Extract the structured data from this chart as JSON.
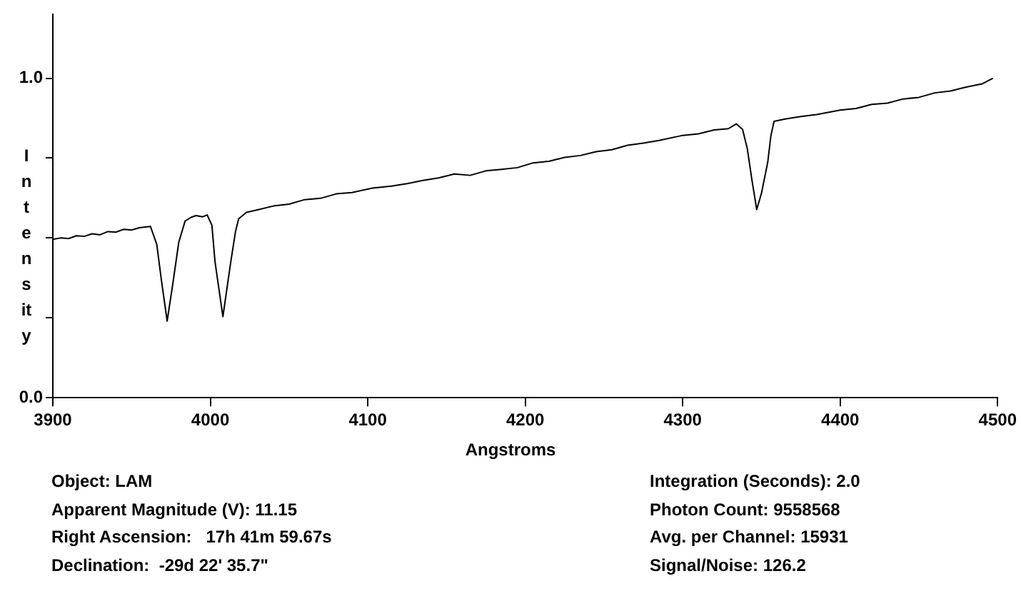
{
  "chart_data": {
    "type": "line",
    "xlabel": "Angstroms",
    "ylabel": "Intensity",
    "x": [
      3900,
      3905,
      3910,
      3915,
      3920,
      3925,
      3930,
      3935,
      3940,
      3945,
      3950,
      3955,
      3962,
      3966,
      3969,
      3972.6,
      3976,
      3980,
      3984,
      3988,
      3991,
      3995,
      3998,
      4001,
      4003,
      4008,
      4013,
      4016,
      4018,
      4023,
      4030,
      4040,
      4050,
      4060,
      4070,
      4080,
      4090,
      4103,
      4115,
      4125,
      4135,
      4145,
      4155,
      4165,
      4175,
      4184,
      4195,
      4205,
      4215,
      4225,
      4235,
      4245,
      4255,
      4265,
      4275,
      4285,
      4299,
      4310,
      4320,
      4329,
      4334,
      4338,
      4341,
      4344,
      4347,
      4350,
      4354,
      4356,
      4358,
      4365,
      4375,
      4385,
      4400,
      4410,
      4420,
      4430,
      4440,
      4450,
      4460,
      4470,
      4480,
      4490,
      4497
    ],
    "values": [
      0.496,
      0.5,
      0.498,
      0.507,
      0.505,
      0.513,
      0.51,
      0.52,
      0.518,
      0.527,
      0.525,
      0.532,
      0.536,
      0.48,
      0.366,
      0.24,
      0.35,
      0.487,
      0.553,
      0.565,
      0.57,
      0.566,
      0.572,
      0.54,
      0.425,
      0.254,
      0.425,
      0.52,
      0.56,
      0.58,
      0.588,
      0.6,
      0.606,
      0.62,
      0.624,
      0.638,
      0.642,
      0.656,
      0.662,
      0.67,
      0.68,
      0.688,
      0.7,
      0.696,
      0.71,
      0.714,
      0.72,
      0.735,
      0.74,
      0.752,
      0.758,
      0.77,
      0.776,
      0.79,
      0.797,
      0.805,
      0.82,
      0.826,
      0.838,
      0.842,
      0.857,
      0.84,
      0.78,
      0.68,
      0.589,
      0.64,
      0.737,
      0.82,
      0.865,
      0.872,
      0.88,
      0.886,
      0.9,
      0.905,
      0.918,
      0.922,
      0.935,
      0.94,
      0.954,
      0.96,
      0.972,
      0.982,
      1.0
    ],
    "color": "#000000",
    "marker": "none",
    "line_style": "solid",
    "grid": false,
    "legend": false,
    "xlim": [
      3900,
      4500
    ],
    "ylim": [
      0,
      1.2
    ],
    "xticks": [
      3900,
      4000,
      4100,
      4200,
      4300,
      4400,
      4500
    ],
    "yticks": [
      {
        "value": 0,
        "label": "0.0"
      },
      {
        "value": 0.25,
        "label": null
      },
      {
        "value": 0.5,
        "label": null
      },
      {
        "value": 0.75,
        "label": null
      },
      {
        "value": 1,
        "label": "1.0"
      }
    ],
    "annotations": [
      "Object: LAM",
      "Apparent Magnitude (V): 11.15",
      "Right Ascension:   17h 41m 59.67s",
      "Declination:  -29d 22' 35.7\"",
      "Integration (Seconds): 2.0",
      "Photon Count: 9558568",
      "Avg. per Channel: 15931",
      "Signal/Noise: 126.2"
    ]
  }
}
